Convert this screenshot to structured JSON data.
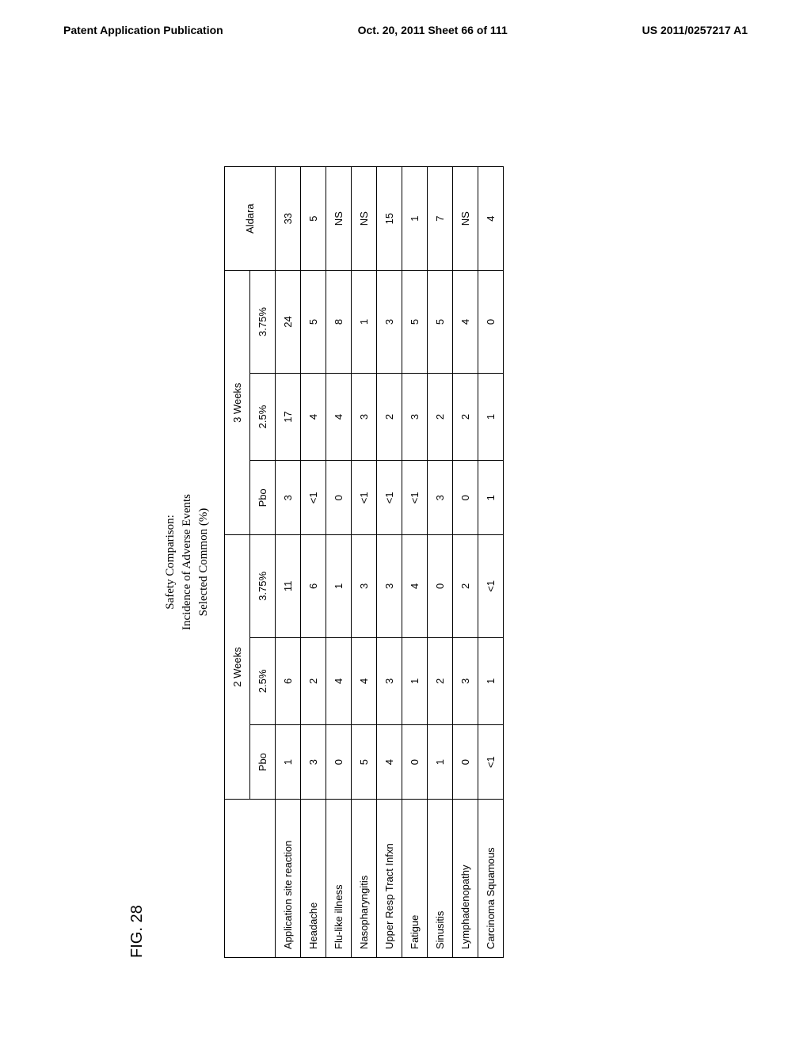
{
  "header": {
    "left": "Patent Application Publication",
    "center": "Oct. 20, 2011  Sheet 66 of 111",
    "right": "US 2011/0257217 A1"
  },
  "figure": {
    "label": "FIG. 28",
    "title_line1": "Safety Comparison:",
    "title_line2": "Incidence of Adverse Events",
    "title_line3": "Selected Common (%)"
  },
  "table": {
    "group_headers": [
      "2 Weeks",
      "3 Weeks",
      "Aldara"
    ],
    "sub_headers_2w": [
      "Pbo",
      "2.5%",
      "3.75%"
    ],
    "sub_headers_3w": [
      "Pbo",
      "2.5%",
      "3.75%"
    ],
    "rows": [
      {
        "label": "Application site reaction",
        "cells": [
          "1",
          "6",
          "11",
          "3",
          "17",
          "24",
          "33"
        ]
      },
      {
        "label": "Headache",
        "cells": [
          "3",
          "2",
          "6",
          "<1",
          "4",
          "5",
          "5"
        ]
      },
      {
        "label": "Flu-like illness",
        "cells": [
          "0",
          "4",
          "1",
          "0",
          "4",
          "8",
          "NS"
        ]
      },
      {
        "label": "Nasopharyngitis",
        "cells": [
          "5",
          "4",
          "3",
          "<1",
          "3",
          "1",
          "NS"
        ]
      },
      {
        "label": "Upper Resp Tract Infxn",
        "cells": [
          "4",
          "3",
          "3",
          "<1",
          "2",
          "3",
          "15"
        ]
      },
      {
        "label": "Fatigue",
        "cells": [
          "0",
          "1",
          "4",
          "<1",
          "3",
          "5",
          "1"
        ]
      },
      {
        "label": "Sinusitis",
        "cells": [
          "1",
          "2",
          "0",
          "3",
          "2",
          "5",
          "7"
        ]
      },
      {
        "label": "Lymphadenopathy",
        "cells": [
          "0",
          "3",
          "2",
          "0",
          "2",
          "4",
          "NS"
        ]
      },
      {
        "label": "Carcinoma Squamous",
        "cells": [
          "<1",
          "1",
          "<1",
          "1",
          "1",
          "0",
          "4"
        ]
      }
    ]
  }
}
